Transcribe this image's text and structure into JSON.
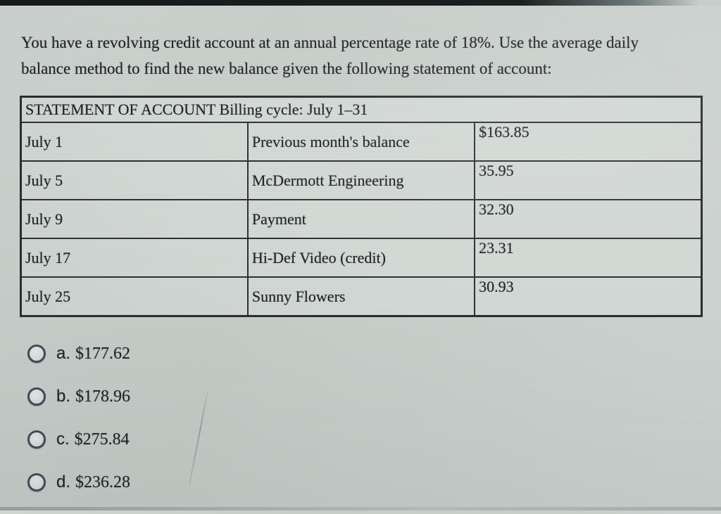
{
  "question": {
    "text": "You have a revolving credit account at an annual percentage rate of 18%. Use the average daily balance method to find the new balance given the following statement of account:"
  },
  "table": {
    "header": "STATEMENT OF ACCOUNT Billing cycle: July 1–31",
    "rows": [
      {
        "date": "July 1",
        "description": "Previous month's balance",
        "amount": "$163.85"
      },
      {
        "date": "July 5",
        "description": "McDermott Engineering",
        "amount": "35.95"
      },
      {
        "date": "July 9",
        "description": "Payment",
        "amount": "32.30"
      },
      {
        "date": "July 17",
        "description": "Hi-Def Video (credit)",
        "amount": "23.31"
      },
      {
        "date": "July 25",
        "description": "Sunny Flowers",
        "amount": "30.93"
      }
    ]
  },
  "options": [
    {
      "letter": "a.",
      "value": "$177.62"
    },
    {
      "letter": "b.",
      "value": "$178.96"
    },
    {
      "letter": "c.",
      "value": "$275.84"
    },
    {
      "letter": "d.",
      "value": "$236.28"
    }
  ],
  "colors": {
    "page_background": "#c9d0cc",
    "table_cell_background": "#d3d9d5",
    "table_border": "#23262b",
    "text": "#15161c",
    "top_edge_strip": "#1a1e1f"
  }
}
